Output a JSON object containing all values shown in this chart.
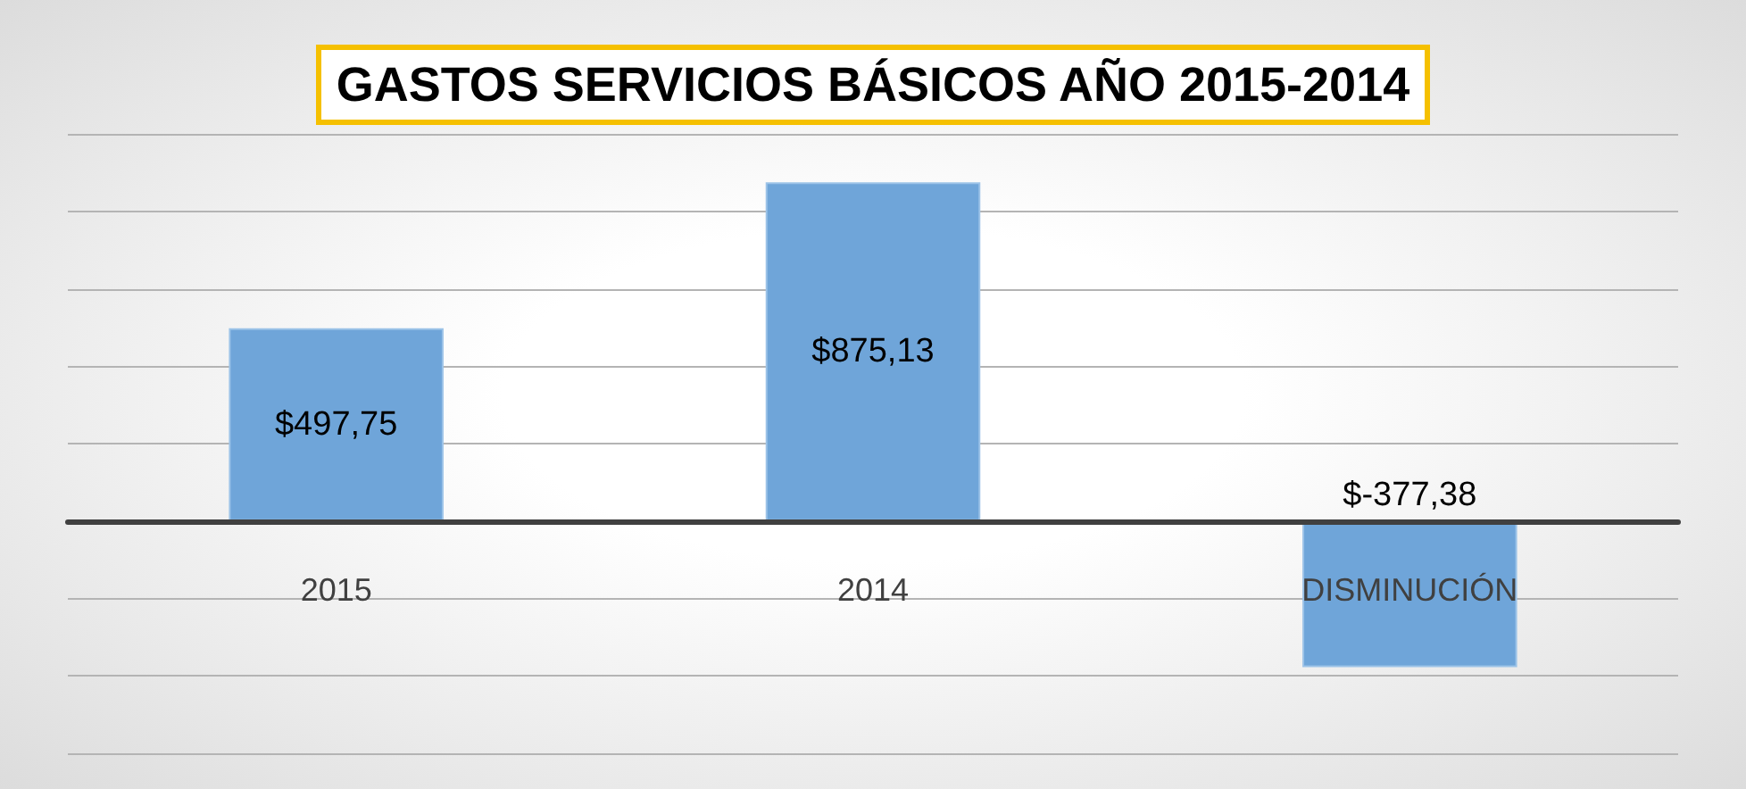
{
  "chart_data": {
    "type": "bar",
    "title": "GASTOS SERVICIOS BÁSICOS AÑO 2015-2014",
    "categories": [
      "2015",
      "2014",
      "DISMINUCIÓN"
    ],
    "values": [
      497.75,
      875.13,
      -377.38
    ],
    "value_labels": [
      "$497,75",
      "$875,13",
      "$-377,38"
    ],
    "color": "#6fa5d9",
    "ylim": [
      -600,
      1000
    ],
    "grid": "y",
    "tick_labels": "x"
  }
}
